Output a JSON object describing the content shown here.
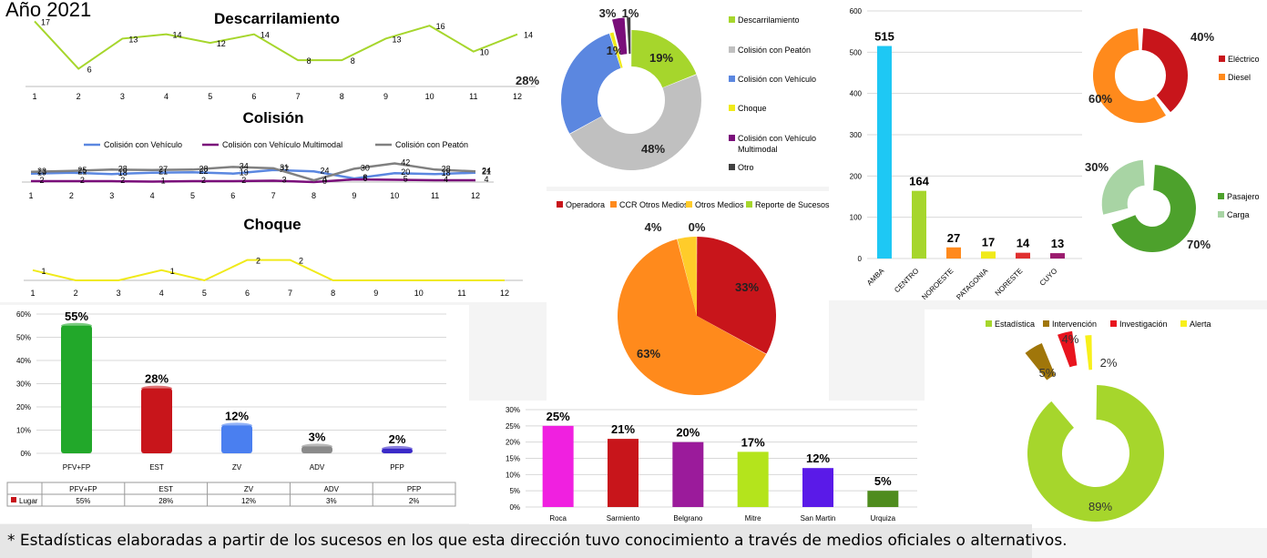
{
  "page": {
    "year": "Año 2021",
    "footnote": "* Estadísticas elaboradas a partir de los sucesos en los que esta dirección tuvo conocimiento a través de medios oficiales o alternativos."
  },
  "chart_data": [
    {
      "id": "descarrilamiento",
      "type": "line",
      "title": "Descarrilamiento",
      "categories": [
        "1",
        "2",
        "3",
        "4",
        "5",
        "6",
        "7",
        "8",
        "9",
        "10",
        "11",
        "12"
      ],
      "series": [
        {
          "values": [
            17,
            6,
            13,
            14,
            12,
            14,
            8,
            8,
            13,
            16,
            10,
            14
          ],
          "color": "#a6d62c"
        }
      ],
      "ylim": [
        0,
        19
      ]
    },
    {
      "id": "colision",
      "type": "line",
      "title": "Colisión",
      "categories": [
        "1",
        "2",
        "3",
        "4",
        "5",
        "6",
        "7",
        "8",
        "9",
        "10",
        "11",
        "12"
      ],
      "series": [
        {
          "name": "Colisión con Vehículo",
          "color": "#5b87e0",
          "values": [
            19,
            21,
            18,
            21,
            22,
            19,
            27,
            24,
            8,
            20,
            18,
            21
          ]
        },
        {
          "name": "Colisión con Vehículo Multimodal",
          "color": "#7a0e7a",
          "values": [
            2,
            2,
            2,
            1,
            2,
            2,
            3,
            0,
            6,
            5,
            4,
            4
          ]
        },
        {
          "name": "Colisión con Peatón",
          "color": "#808080",
          "values": [
            23,
            25,
            28,
            27,
            28,
            34,
            31,
            4,
            30,
            42,
            28,
            24
          ]
        }
      ],
      "ylim": [
        0,
        45
      ],
      "legend": "top"
    },
    {
      "id": "choque",
      "type": "line",
      "title": "Choque",
      "categories": [
        "1",
        "2",
        "3",
        "4",
        "5",
        "6",
        "7",
        "8",
        "9",
        "10",
        "11",
        "12"
      ],
      "series": [
        {
          "values": [
            1,
            0,
            0,
            1,
            0,
            2,
            2,
            0,
            0,
            0,
            0,
            0
          ],
          "color": "#f0ea1a"
        }
      ],
      "labeled_points": [
        0,
        3,
        5,
        6
      ],
      "ylim": [
        0,
        2.5
      ]
    },
    {
      "id": "tipos-pie",
      "type": "pie",
      "donut": true,
      "slices": [
        {
          "label": "Descarrilamiento",
          "value": 19,
          "text": "19%",
          "color": "#a6d62c"
        },
        {
          "label": "Colisión con Peatón",
          "value": 48,
          "text": "48%",
          "color": "#c0c0c0"
        },
        {
          "label": "Colisión con Vehículo",
          "value": 28,
          "text": "28%",
          "color": "#5b87e0"
        },
        {
          "label": "Choque",
          "value": 1,
          "text": "1%",
          "color": "#f0ea1a"
        },
        {
          "label": "Colisión con Vehículo Multimodal",
          "value": 3,
          "text": "3%",
          "color": "#7a0e7a"
        },
        {
          "label": "Otro",
          "value": 1,
          "text": "1%",
          "color": "#404040"
        }
      ],
      "legend": "right"
    },
    {
      "id": "regiones",
      "type": "bar",
      "categories": [
        "AMBA",
        "CENTRO",
        "NOROESTE",
        "PATAGONIA",
        "NORESTE",
        "CUYO"
      ],
      "values": [
        515,
        164,
        27,
        17,
        14,
        13
      ],
      "colors": [
        "#1ec8f4",
        "#a6d62c",
        "#ff8a1c",
        "#f0ea1a",
        "#e03030",
        "#9b1b6e"
      ],
      "ylim": [
        0,
        600
      ],
      "yticks": [
        0,
        100,
        200,
        300,
        400,
        500,
        600
      ]
    },
    {
      "id": "traccion",
      "type": "pie",
      "donut": true,
      "slices": [
        {
          "label": "Eléctrico",
          "value": 40,
          "text": "40%",
          "color": "#c8151b"
        },
        {
          "label": "Diesel",
          "value": 60,
          "text": "60%",
          "color": "#ff8a1c"
        }
      ],
      "legend": "right"
    },
    {
      "id": "servicio",
      "type": "pie",
      "donut": true,
      "slices": [
        {
          "label": "Pasajero",
          "value": 70,
          "text": "70%",
          "color": "#4da12c"
        },
        {
          "label": "Carga",
          "value": 30,
          "text": "30%",
          "color": "#a8d4a4"
        }
      ],
      "legend": "right"
    },
    {
      "id": "fuente",
      "type": "pie",
      "slices": [
        {
          "label": "Operadora",
          "value": 33,
          "text": "33%",
          "color": "#c8151b"
        },
        {
          "label": "CCR Otros Medios",
          "value": 63,
          "text": "63%",
          "color": "#ff8a1c"
        },
        {
          "label": "Otros Medios",
          "value": 4,
          "text": "4%",
          "color": "#ffcc2a"
        },
        {
          "label": "Reporte de Sucesos",
          "value": 0,
          "text": "0%",
          "color": "#a6d62c"
        }
      ],
      "legend": "top"
    },
    {
      "id": "lugar",
      "type": "bar",
      "categories": [
        "PFV+FP",
        "EST",
        "ZV",
        "ADV",
        "PFP"
      ],
      "values": [
        55,
        28,
        12,
        3,
        2
      ],
      "value_labels": [
        "55%",
        "28%",
        "12%",
        "3%",
        "2%"
      ],
      "colors": [
        "#22a82a",
        "#c8151b",
        "#4a7ff0",
        "#8a8a8a",
        "#3a2ac8"
      ],
      "ylim": [
        0,
        60
      ],
      "yticks": [
        "0%",
        "10%",
        "20%",
        "30%",
        "40%",
        "50%",
        "60%"
      ],
      "table": {
        "series": "Lugar",
        "row": [
          "55%",
          "28%",
          "12%",
          "3%",
          "2%"
        ]
      }
    },
    {
      "id": "lineas",
      "type": "bar",
      "categories": [
        "Roca",
        "Sarmiento",
        "Belgrano",
        "Mitre",
        "San Martin",
        "Urquiza"
      ],
      "values": [
        25,
        21,
        20,
        17,
        12,
        5
      ],
      "value_labels": [
        "25%",
        "21%",
        "20%",
        "17%",
        "12%",
        "5%"
      ],
      "colors": [
        "#f020e0",
        "#c8151b",
        "#9b1b9b",
        "#b4e41c",
        "#5a1ae8",
        "#4f8c1e"
      ],
      "ylim": [
        0,
        30
      ],
      "yticks": [
        "0%",
        "5%",
        "10%",
        "15%",
        "20%",
        "25%",
        "30%"
      ]
    },
    {
      "id": "categoria",
      "type": "pie",
      "donut": true,
      "slices": [
        {
          "label": "Estadística",
          "value": 89,
          "text": "89%",
          "color": "#a6d62c"
        },
        {
          "label": "Intervención",
          "value": 5,
          "text": "5%",
          "color": "#a0760a"
        },
        {
          "label": "Investigación",
          "value": 4,
          "text": "4%",
          "color": "#e8141e"
        },
        {
          "label": "Alerta",
          "value": 2,
          "text": "2%",
          "color": "#f8f01a"
        }
      ],
      "legend": "top"
    }
  ]
}
